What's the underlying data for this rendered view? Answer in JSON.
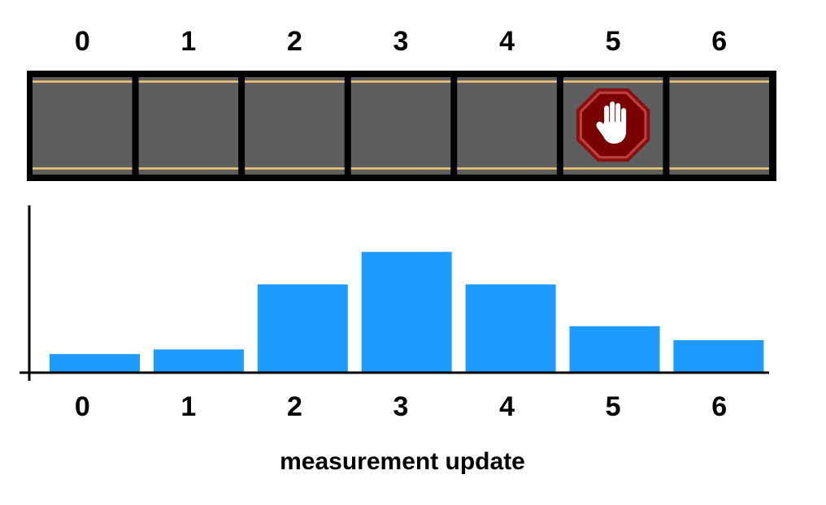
{
  "road": {
    "cell_labels": [
      "0",
      "1",
      "2",
      "3",
      "4",
      "5",
      "6"
    ],
    "stop_sign_cell": 5,
    "stop_sign_icon": "stop-hand-icon",
    "colors": {
      "frame": "#000000",
      "asphalt": "#5e5e5e",
      "lane_line": "#f0c878",
      "sign_outer": "#8a1010",
      "sign_inner": "#7a0000",
      "sign_border": "#c04040",
      "hand": "#ffffff"
    }
  },
  "chart_data": {
    "type": "bar",
    "categories": [
      "0",
      "1",
      "2",
      "3",
      "4",
      "5",
      "6"
    ],
    "values": [
      0.04,
      0.05,
      0.19,
      0.26,
      0.19,
      0.1,
      0.07
    ],
    "xlabel": "measurement update",
    "ylabel": "",
    "ylim": [
      0,
      0.36
    ],
    "bar_color": "#1e9bff",
    "grid": false
  }
}
